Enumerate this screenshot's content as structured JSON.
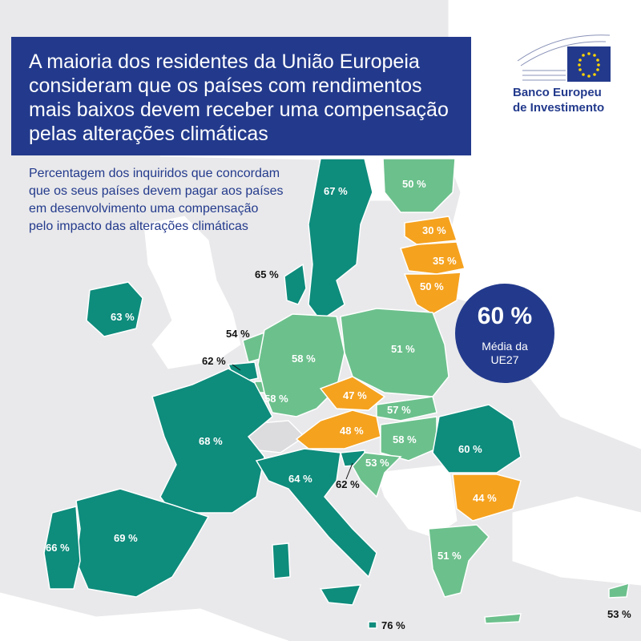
{
  "title": "A maioria dos residentes da União Europeia consideram que os países com rendimentos mais baixos devem receber uma compensação pelas alterações climáticas",
  "subtitle": "Percentagem dos inquiridos que concordam que os seus países devem pagar aos países em desenvolvimento uma compensação pelo impacto das alterações climáticas",
  "logo": {
    "line1": "Banco Europeu",
    "line2": "de Investimento"
  },
  "average": {
    "value": "60 %",
    "label_line1": "Média da",
    "label_line2": "UE27"
  },
  "colors": {
    "dark_green": "#0e8c7c",
    "light_green": "#6cc08c",
    "orange": "#f5a21f",
    "navy": "#233a8c"
  },
  "countries": {
    "sweden": "67 %",
    "finland": "50 %",
    "estonia": "30 %",
    "latvia": "35 %",
    "lithuania": "50 %",
    "denmark": "65 %",
    "ireland": "63 %",
    "netherlands": "54 %",
    "belgium": "62 %",
    "germany": "58 %",
    "poland": "51 %",
    "luxembourg": "58 %",
    "czechia": "47 %",
    "slovakia": "57 %",
    "austria": "48 %",
    "hungary": "58 %",
    "france": "68 %",
    "romania": "60 %",
    "slovenia": "53 %",
    "italy": "64 %",
    "croatia": "62 %",
    "bulgaria": "44 %",
    "portugal": "66 %",
    "spain": "69 %",
    "greece": "51 %",
    "malta": "76 %",
    "cyprus": "53 %"
  }
}
